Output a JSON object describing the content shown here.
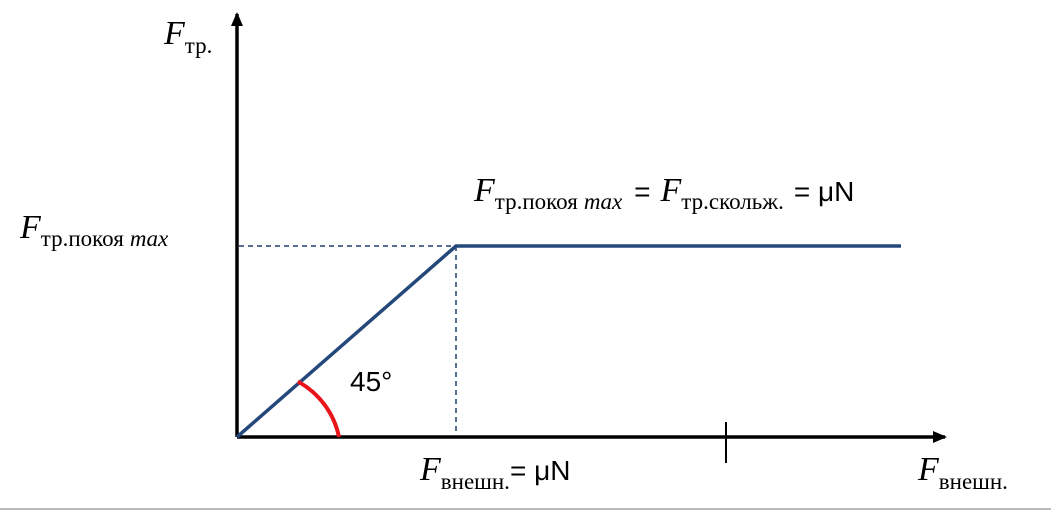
{
  "y_axis_label": {
    "symbol": "F",
    "subscript": "тр."
  },
  "level_label": {
    "symbol": "F",
    "subscript": "тр.покоя",
    "subscript_italic": "max"
  },
  "equation": {
    "symbol1": "F",
    "subscript1": "тр.покоя",
    "subscript1_italic": "max",
    "equals1": "=",
    "symbol2": "F",
    "subscript2": "тр.скольж.",
    "equals2": "= μN"
  },
  "angle_label": "45°",
  "x_point_label": {
    "symbol": "F",
    "subscript": "внешн.",
    "rest": "= μN"
  },
  "x_axis_label": {
    "symbol": "F",
    "subscript": "внешн."
  }
}
